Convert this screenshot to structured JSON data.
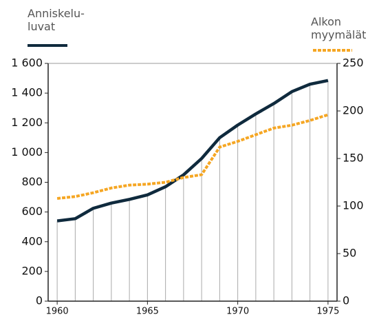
{
  "chart_data": {
    "type": "line",
    "x": [
      1960,
      1961,
      1962,
      1963,
      1964,
      1965,
      1966,
      1967,
      1968,
      1969,
      1970,
      1971,
      1972,
      1973,
      1974,
      1975
    ],
    "series": [
      {
        "name": "Anniskelu-\nluvat",
        "color": "#0f2a3d",
        "values": [
          540,
          555,
          625,
          660,
          685,
          715,
          770,
          850,
          960,
          1100,
          1185,
          1260,
          1330,
          1410,
          1460,
          1485
        ]
      },
      {
        "name": "Alkon\nmyymälät",
        "color": "#f5a623",
        "axis": "y2",
        "dashed": true,
        "values": [
          108,
          110,
          114,
          119,
          122,
          123,
          125,
          130,
          133,
          162,
          168,
          175,
          182,
          185,
          190,
          196
        ]
      }
    ],
    "xlim": [
      1959.5,
      1975.5
    ],
    "xticks": [
      1960,
      1965,
      1970,
      1975
    ],
    "ylim": [
      0,
      1600
    ],
    "yticks": [
      0,
      200,
      400,
      600,
      800,
      {
        "value": 1000,
        "label": "1 000"
      },
      {
        "value": 1200,
        "label": "1 200"
      },
      {
        "value": 1400,
        "label": "1 400"
      },
      {
        "value": 1600,
        "label": "1 600"
      }
    ],
    "y2lim": [
      0,
      250
    ],
    "y2ticks": [
      0,
      50,
      100,
      150,
      200,
      250
    ]
  }
}
